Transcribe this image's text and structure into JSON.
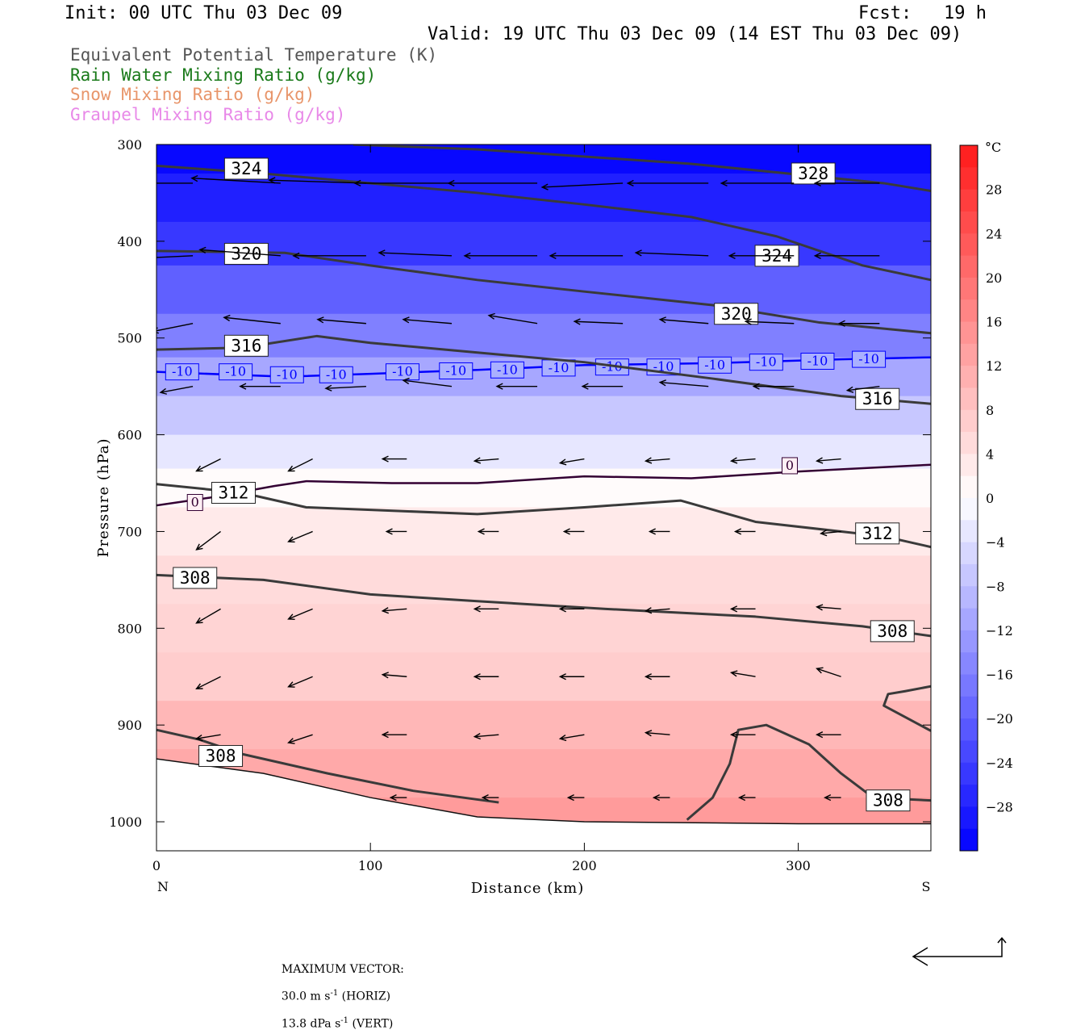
{
  "header": {
    "init": "Init: 00 UTC Thu 03 Dec 09",
    "fcst": "Fcst:   19 h",
    "valid": "Valid: 19 UTC Thu 03 Dec 09 (14 EST Thu 03 Dec 09)",
    "legend": [
      {
        "label": "Equivalent Potential Temperature (K)",
        "color": "#555555"
      },
      {
        "label": "Rain Water Mixing Ratio (g/kg)",
        "color": "#1a7a1a"
      },
      {
        "label": "Snow Mixing Ratio (g/kg)",
        "color": "#e8956a"
      },
      {
        "label": "Graupel Mixing Ratio (g/kg)",
        "color": "#e889e8"
      }
    ]
  },
  "chart_data": {
    "type": "cross-section",
    "xlabel": "Distance (km)",
    "ylabel": "Pressure (hPa)",
    "xlim": [
      0,
      362
    ],
    "ylim": [
      1030,
      300
    ],
    "x_ticks": [
      0,
      100,
      200,
      300
    ],
    "y_ticks": [
      300,
      400,
      500,
      600,
      700,
      800,
      900,
      1000
    ],
    "x_end_labels": {
      "left": "N",
      "right": "S"
    },
    "colorbar": {
      "unit": "°C",
      "ticks": [
        28,
        24,
        20,
        16,
        12,
        8,
        4,
        0,
        -4,
        -8,
        -12,
        -16,
        -20,
        -24,
        -28
      ],
      "range": [
        -32,
        32
      ],
      "warm_color": "#ff1a1a",
      "cold_color": "#0000ff"
    },
    "temperature_rows": [
      {
        "p": 300,
        "t": -31
      },
      {
        "p": 360,
        "t": -28
      },
      {
        "p": 400,
        "t": -25
      },
      {
        "p": 450,
        "t": -20
      },
      {
        "p": 500,
        "t": -16
      },
      {
        "p": 540,
        "t": -11
      },
      {
        "p": 580,
        "t": -7
      },
      {
        "p": 620,
        "t": -3
      },
      {
        "p": 650,
        "t": 0.5
      },
      {
        "p": 700,
        "t": 3
      },
      {
        "p": 750,
        "t": 5
      },
      {
        "p": 800,
        "t": 6
      },
      {
        "p": 850,
        "t": 7
      },
      {
        "p": 900,
        "t": 10
      },
      {
        "p": 950,
        "t": 12
      },
      {
        "p": 1000,
        "t": 14
      }
    ],
    "theta_e": [
      {
        "value": 328,
        "points": [
          [
            92,
            300
          ],
          [
            150,
            305
          ],
          [
            250,
            320
          ],
          [
            340,
            340
          ],
          [
            362,
            348
          ]
        ],
        "label_at": [
          307,
          330
        ]
      },
      {
        "value": 324,
        "points": [
          [
            0,
            322
          ],
          [
            50,
            330
          ],
          [
            100,
            340
          ],
          [
            150,
            350
          ],
          [
            200,
            362
          ],
          [
            250,
            375
          ],
          [
            290,
            395
          ],
          [
            330,
            425
          ],
          [
            362,
            440
          ]
        ],
        "label_at": [
          42,
          325
        ]
      },
      {
        "value": 324,
        "points": [],
        "label_at": [
          290,
          415
        ]
      },
      {
        "value": 320,
        "points": [
          [
            0,
            410
          ],
          [
            60,
            412
          ],
          [
            100,
            425
          ],
          [
            150,
            440
          ],
          [
            200,
            452
          ],
          [
            260,
            466
          ],
          [
            310,
            484
          ],
          [
            362,
            495
          ]
        ],
        "label_at": [
          42,
          413
        ]
      },
      {
        "value": 320,
        "points": [],
        "label_at": [
          271,
          475
        ]
      },
      {
        "value": 316,
        "points": [
          [
            0,
            512
          ],
          [
            40,
            510
          ],
          [
            75,
            498
          ],
          [
            100,
            505
          ],
          [
            150,
            515
          ],
          [
            200,
            525
          ],
          [
            260,
            542
          ],
          [
            320,
            560
          ],
          [
            362,
            568
          ]
        ],
        "label_at": [
          42,
          508
        ]
      },
      {
        "value": 316,
        "points": [],
        "label_at": [
          337,
          563
        ]
      },
      {
        "value": 312,
        "points": [
          [
            0,
            651
          ],
          [
            40,
            660
          ],
          [
            70,
            675
          ],
          [
            150,
            682
          ],
          [
            200,
            675
          ],
          [
            245,
            668
          ],
          [
            280,
            690
          ],
          [
            340,
            705
          ],
          [
            362,
            716
          ]
        ],
        "label_at": [
          36,
          660
        ]
      },
      {
        "value": 312,
        "points": [],
        "label_at": [
          337,
          702
        ]
      },
      {
        "value": 308,
        "points": [
          [
            0,
            745
          ],
          [
            50,
            750
          ],
          [
            100,
            765
          ],
          [
            150,
            772
          ],
          [
            210,
            780
          ],
          [
            280,
            788
          ],
          [
            330,
            798
          ],
          [
            362,
            808
          ]
        ],
        "label_at": [
          18,
          748
        ]
      },
      {
        "value": 308,
        "points": [],
        "label_at": [
          344,
          803
        ]
      },
      {
        "value": 308,
        "points": [
          [
            0,
            905
          ],
          [
            20,
            915
          ],
          [
            40,
            930
          ],
          [
            80,
            950
          ],
          [
            120,
            968
          ],
          [
            160,
            980
          ]
        ],
        "label_at": [
          30,
          932
        ]
      },
      {
        "value": 308,
        "points": [
          [
            248,
            998
          ],
          [
            260,
            975
          ],
          [
            268,
            940
          ],
          [
            272,
            905
          ],
          [
            285,
            900
          ],
          [
            305,
            920
          ],
          [
            320,
            950
          ],
          [
            335,
            975
          ],
          [
            362,
            978
          ]
        ],
        "label_at": [
          342,
          978
        ]
      },
      {
        "value": 308,
        "points": [
          [
            362,
            860
          ],
          [
            350,
            865
          ],
          [
            342,
            868
          ],
          [
            340,
            880
          ],
          [
            362,
            906
          ]
        ]
      }
    ],
    "isotherm_m10": {
      "points": [
        [
          0,
          535
        ],
        [
          60,
          540
        ],
        [
          100,
          537
        ],
        [
          150,
          533
        ],
        [
          200,
          528
        ],
        [
          260,
          526
        ],
        [
          320,
          522
        ],
        [
          362,
          520
        ]
      ],
      "labels": [
        [
          12,
          535
        ],
        [
          37,
          535
        ],
        [
          61,
          538
        ],
        [
          84,
          538
        ],
        [
          115,
          535
        ],
        [
          140,
          534
        ],
        [
          164,
          533
        ],
        [
          188,
          531
        ],
        [
          213,
          530
        ],
        [
          237,
          530
        ],
        [
          261,
          528
        ],
        [
          285,
          525
        ],
        [
          309,
          524
        ],
        [
          333,
          522
        ]
      ],
      "text": "-10",
      "color": "#0000ff"
    },
    "isotherm_0": {
      "points": [
        [
          0,
          673
        ],
        [
          25,
          665
        ],
        [
          55,
          653
        ],
        [
          70,
          648
        ],
        [
          110,
          650
        ],
        [
          150,
          650
        ],
        [
          200,
          643
        ],
        [
          250,
          645
        ],
        [
          300,
          638
        ],
        [
          362,
          631
        ]
      ],
      "labels": [
        [
          18,
          670
        ],
        [
          296,
          632
        ]
      ],
      "text": "0",
      "color": "#330033"
    },
    "ground": [
      [
        0,
        935
      ],
      [
        50,
        950
      ],
      [
        100,
        975
      ],
      [
        150,
        995
      ],
      [
        200,
        1000
      ],
      [
        300,
        1002
      ],
      [
        362,
        1002
      ]
    ],
    "wind_vectors": {
      "rows": [
        {
          "p": 340,
          "x": [
            17,
            58,
            98,
            138,
            178,
            218,
            258,
            298,
            338
          ],
          "u": [
            -18,
            -22,
            -24,
            -24,
            -22,
            -20,
            -20,
            -18,
            -16
          ],
          "w": [
            0,
            -5,
            -3,
            0,
            0,
            4,
            0,
            0,
            0
          ]
        },
        {
          "p": 415,
          "x": [
            17,
            58,
            98,
            138,
            178,
            218,
            258,
            298,
            338
          ],
          "u": [
            -16,
            -20,
            -18,
            -18,
            -18,
            -18,
            -18,
            -16,
            -16
          ],
          "w": [
            3,
            -6,
            0,
            -3,
            0,
            0,
            -3,
            0,
            0
          ]
        },
        {
          "p": 485,
          "x": [
            17,
            58,
            98,
            138,
            178,
            218,
            258,
            298,
            338
          ],
          "u": [
            -10,
            -14,
            -12,
            -12,
            -12,
            -12,
            -12,
            -12,
            -10
          ],
          "w": [
            8,
            -6,
            -4,
            -4,
            -8,
            -2,
            -4,
            -2,
            0
          ]
        },
        {
          "p": 550,
          "x": [
            17,
            58,
            98,
            138,
            178,
            218,
            258,
            298,
            338
          ],
          "u": [
            -8,
            -10,
            -10,
            -12,
            -10,
            -10,
            -12,
            -10,
            -8
          ],
          "w": [
            6,
            0,
            2,
            -6,
            0,
            0,
            -4,
            0,
            4
          ]
        },
        {
          "p": 625,
          "x": [
            30,
            73,
            117,
            160,
            200,
            240,
            280,
            320
          ],
          "u": [
            -6,
            -6,
            -6,
            -6,
            -6,
            -6,
            -6,
            -6
          ],
          "w": [
            12,
            12,
            0,
            2,
            4,
            2,
            2,
            2
          ]
        },
        {
          "p": 700,
          "x": [
            30,
            73,
            117,
            160,
            200,
            240,
            280,
            320
          ],
          "u": [
            -6,
            -6,
            -5,
            -5,
            -5,
            -5,
            -5,
            -5
          ],
          "w": [
            18,
            10,
            0,
            0,
            0,
            0,
            0,
            2
          ]
        },
        {
          "p": 780,
          "x": [
            30,
            73,
            117,
            160,
            200,
            240,
            280,
            320
          ],
          "u": [
            -6,
            -6,
            -6,
            -6,
            -6,
            -6,
            -6,
            -6
          ],
          "w": [
            14,
            10,
            2,
            0,
            0,
            2,
            0,
            -2
          ]
        },
        {
          "p": 850,
          "x": [
            30,
            73,
            117,
            160,
            200,
            240,
            280,
            320
          ],
          "u": [
            -6,
            -6,
            -6,
            -6,
            -6,
            -6,
            -6,
            -6
          ],
          "w": [
            12,
            10,
            -2,
            0,
            0,
            0,
            -4,
            -8
          ]
        },
        {
          "p": 910,
          "x": [
            30,
            73,
            117,
            160,
            200,
            240,
            280,
            320
          ],
          "u": [
            -6,
            -6,
            -6,
            -6,
            -6,
            -6,
            -6,
            -6
          ],
          "w": [
            4,
            8,
            0,
            2,
            4,
            -2,
            0,
            0
          ]
        },
        {
          "p": 975,
          "x": [
            117,
            160,
            200,
            240,
            280,
            320
          ],
          "u": [
            -4,
            -4,
            -4,
            -4,
            -4,
            -4
          ],
          "w": [
            0,
            0,
            0,
            0,
            0,
            0
          ]
        }
      ]
    }
  },
  "footer": {
    "label": "MAXIMUM VECTOR:",
    "horiz_value": "30.0 m s",
    "horiz_tail": " (HORIZ)",
    "vert_value": "13.8 dPa s",
    "vert_tail": " (VERT)",
    "exponent": "-1"
  }
}
